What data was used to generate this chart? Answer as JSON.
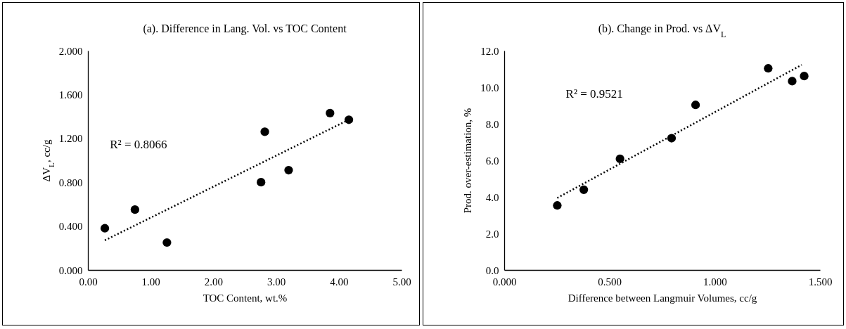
{
  "chart_data": [
    {
      "type": "scatter",
      "title": "(a). Difference in Lang. Vol. vs TOC Content",
      "xlabel": "TOC Content, wt.%",
      "ylabel": "ΔV$_{L}$, cc/g",
      "annotations": [
        "R² = 0.8066"
      ],
      "series": [
        {
          "type": "scatter",
          "color": "#000000",
          "marker": "circle",
          "x": [
            0.27,
            0.75,
            1.26,
            2.76,
            2.82,
            3.2,
            3.86,
            4.16
          ],
          "values": [
            0.38,
            0.55,
            0.25,
            0.8,
            1.26,
            0.91,
            1.43,
            1.37
          ]
        },
        {
          "type": "line",
          "color": "#000000",
          "marker": "none",
          "line_style": "dotted",
          "x": [
            0.27,
            4.16
          ],
          "values": [
            0.27,
            1.37
          ]
        }
      ],
      "xlim": [
        0,
        5
      ],
      "ylim": [
        0,
        2
      ],
      "xticks": [
        {
          "value": 0,
          "label": "0.00"
        },
        {
          "value": 1,
          "label": "1.00"
        },
        {
          "value": 2,
          "label": "2.00"
        },
        {
          "value": 3,
          "label": "3.00"
        },
        {
          "value": 4,
          "label": "4.00"
        },
        {
          "value": 5,
          "label": "5.00"
        }
      ],
      "yticks": [
        {
          "value": 0,
          "label": "0.000"
        },
        {
          "value": 0.4,
          "label": "0.400"
        },
        {
          "value": 0.8,
          "label": "0.800"
        },
        {
          "value": 1.2,
          "label": "1.200"
        },
        {
          "value": 1.6,
          "label": "1.600"
        },
        {
          "value": 2,
          "label": "2.000"
        }
      ]
    },
    {
      "type": "scatter",
      "title": "(b). Change in Prod. vs  ΔV$_{L}$",
      "xlabel": "Difference between Langmuir Volumes, cc/g",
      "ylabel": "Prod. over-estimation, %",
      "annotations": [
        "R² = 0.9521"
      ],
      "series": [
        {
          "type": "scatter",
          "color": "#000000",
          "marker": "circle",
          "x": [
            0.252,
            0.378,
            0.55,
            0.795,
            0.909,
            1.254,
            1.368,
            1.425
          ],
          "values": [
            3.53,
            4.39,
            6.08,
            7.21,
            9.03,
            11.03,
            10.33,
            10.61
          ]
        },
        {
          "type": "line",
          "color": "#000000",
          "marker": "none",
          "line_style": "dotted",
          "x": [
            0.252,
            1.413
          ],
          "values": [
            3.94,
            11.22
          ]
        }
      ],
      "xlim": [
        0,
        1.5
      ],
      "ylim": [
        0,
        12
      ],
      "xticks": [
        {
          "value": 0,
          "label": "0.000"
        },
        {
          "value": 0.5,
          "label": "0.500"
        },
        {
          "value": 1,
          "label": "1.000"
        },
        {
          "value": 1.5,
          "label": "1.500"
        }
      ],
      "yticks": [
        {
          "value": 0,
          "label": "0.0"
        },
        {
          "value": 2,
          "label": "2.0"
        },
        {
          "value": 4,
          "label": "4.0"
        },
        {
          "value": 6,
          "label": "6.0"
        },
        {
          "value": 8,
          "label": "8.0"
        },
        {
          "value": 10,
          "label": "10.0"
        },
        {
          "value": 12,
          "label": "12.0"
        }
      ]
    }
  ]
}
